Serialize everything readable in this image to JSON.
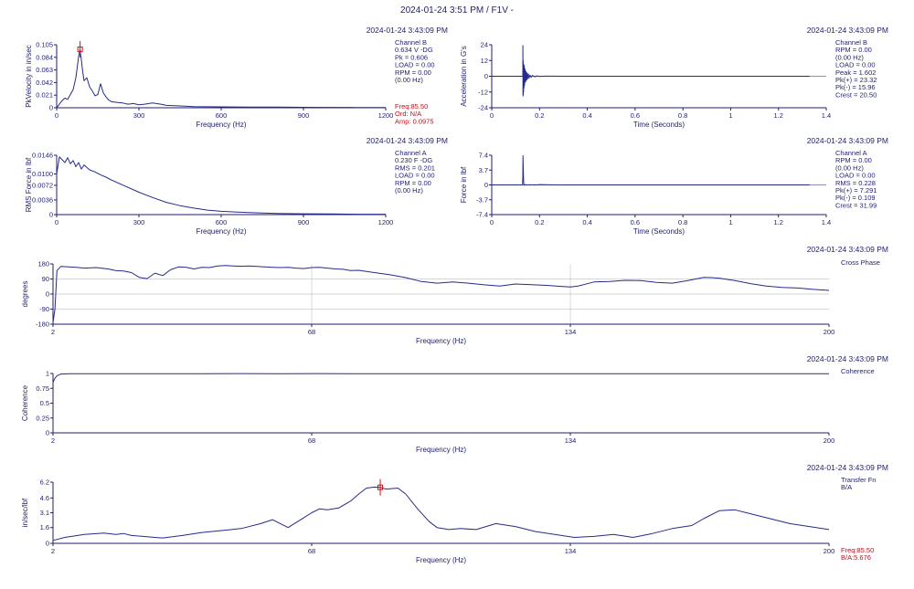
{
  "window": {
    "title": "2024-01-24 3:51 PM / F1V -"
  },
  "colors": {
    "trace": "#252a8c",
    "axis": "#1e1e6e",
    "grid": "#c8c8c8",
    "marker": "#c8141e",
    "annotation": "#b4141e"
  },
  "chart_data": [
    {
      "id": "p1",
      "type": "line",
      "timestamp": "2024-01-24 3:43:09 PM",
      "xlabel": "Frequency (Hz)",
      "ylabel": "PkVelocity in in/sec",
      "xlim": [
        0,
        1200
      ],
      "ylim": [
        0,
        0.105
      ],
      "xticks": [
        0,
        300,
        600,
        900,
        1200
      ],
      "yticks": [
        0,
        0.021,
        0.042,
        0.063,
        0.084,
        0.105
      ],
      "ytick_labels": [
        "0",
        "0.021",
        "0.042",
        "0.063",
        "0.084",
        "0.105"
      ],
      "xtick_labels": [
        "0",
        "300",
        "600",
        "900",
        "1200"
      ],
      "info": [
        "Channel B",
        "0.634 V -DG",
        "Pk = 0.606",
        "LOAD = 0.00",
        "RPM = 0.00",
        "(0.00 Hz)"
      ],
      "info_red": [
        "Freq:85.50",
        "Ord:  N/A",
        "Amp: 0.0975"
      ],
      "cursor": {
        "x": 85.5,
        "y": 0.0975
      },
      "x": [
        0,
        10,
        20,
        30,
        40,
        50,
        60,
        70,
        80,
        85,
        90,
        95,
        100,
        110,
        120,
        130,
        140,
        150,
        160,
        170,
        180,
        190,
        200,
        220,
        240,
        260,
        280,
        300,
        320,
        350,
        380,
        400,
        450,
        500,
        600,
        700,
        800,
        900,
        1000,
        1100,
        1200
      ],
      "values": [
        0,
        0.006,
        0.012,
        0.016,
        0.014,
        0.022,
        0.03,
        0.05,
        0.085,
        0.0975,
        0.08,
        0.06,
        0.045,
        0.05,
        0.035,
        0.028,
        0.02,
        0.022,
        0.04,
        0.025,
        0.018,
        0.013,
        0.01,
        0.009,
        0.008,
        0.006,
        0.007,
        0.005,
        0.006,
        0.008,
        0.006,
        0.004,
        0.003,
        0.002,
        0.0015,
        0.001,
        0.001,
        0.0008,
        0.0006,
        0.0005,
        0.0004
      ]
    },
    {
      "id": "p2",
      "type": "line",
      "timestamp": "2024-01-24 3:43:09 PM",
      "xlabel": "Time (Seconds)",
      "ylabel": "Acceleration in G's",
      "xlim": [
        0,
        1.4
      ],
      "ylim": [
        -24,
        24
      ],
      "xticks": [
        0,
        0.2,
        0.4,
        0.6,
        0.8,
        1,
        1.2,
        1.4
      ],
      "xtick_labels": [
        "0",
        "0.2",
        "0.4",
        "0.6",
        "0.8",
        "1",
        "1.2",
        "1.4"
      ],
      "yticks": [
        -24,
        -12,
        0,
        12,
        24
      ],
      "ytick_labels": [
        "-24",
        "-12",
        "0",
        "12",
        "24"
      ],
      "info": [
        "Channel B",
        "RPM = 0.00",
        "(0.00 Hz)",
        "LOAD = 0.00",
        "Peak = 1.602",
        "Pk(+) = 23.32",
        "Pk(-) = 15.96",
        "Crest = 20.50"
      ],
      "x": [
        0,
        0.128,
        0.13,
        0.1305,
        0.131,
        0.1315,
        0.132,
        0.1325,
        0.133,
        0.134,
        0.135,
        0.136,
        0.137,
        0.138,
        0.139,
        0.14,
        0.142,
        0.144,
        0.146,
        0.148,
        0.15,
        0.153,
        0.156,
        0.16,
        0.165,
        0.17,
        0.18,
        0.19,
        0.2,
        0.22,
        0.25,
        0.3,
        1.33
      ],
      "values": [
        0,
        0,
        0,
        23.3,
        -15,
        12,
        -14,
        10,
        -12,
        9,
        -9,
        8,
        -7,
        6,
        -5,
        5,
        -4,
        3.5,
        -3,
        2.5,
        -2,
        1.8,
        -1.5,
        1,
        -0.8,
        0.6,
        -0.4,
        0.3,
        -0.2,
        0.1,
        0.05,
        0,
        0
      ]
    },
    {
      "id": "p3",
      "type": "line",
      "timestamp": "2024-01-24 3:43:09 PM",
      "xlabel": "Frequency (Hz)",
      "ylabel": "RMS Force in lbf",
      "xlim": [
        0,
        1200
      ],
      "ylim": [
        0,
        0.0146
      ],
      "xticks": [
        0,
        300,
        600,
        900,
        1200
      ],
      "xtick_labels": [
        "0",
        "300",
        "600",
        "900",
        "1200"
      ],
      "yticks": [
        0,
        0.0036,
        0.0072,
        0.01,
        0.0146
      ],
      "ytick_labels": [
        "0",
        "0.0036",
        "0.0072",
        "0.0100",
        "0.0146"
      ],
      "info": [
        "Channel A",
        "0.230 F -DG",
        "RMS = 0.201",
        "LOAD = 0.00",
        "RPM = 0.00",
        "(0.00 Hz)"
      ],
      "x": [
        0,
        10,
        20,
        30,
        40,
        50,
        60,
        70,
        80,
        90,
        100,
        120,
        140,
        160,
        180,
        200,
        250,
        300,
        350,
        400,
        450,
        500,
        550,
        600,
        700,
        800,
        900,
        1000,
        1100,
        1200
      ],
      "values": [
        0.01,
        0.0142,
        0.0135,
        0.0128,
        0.014,
        0.0125,
        0.0133,
        0.0118,
        0.0128,
        0.0112,
        0.0122,
        0.011,
        0.0105,
        0.0098,
        0.0092,
        0.0085,
        0.007,
        0.0055,
        0.0042,
        0.003,
        0.0022,
        0.0016,
        0.0011,
        0.0008,
        0.0005,
        0.0003,
        0.0002,
        0.00015,
        0.0001,
        0.0001
      ]
    },
    {
      "id": "p4",
      "type": "line",
      "timestamp": "2024-01-24 3:43:09 PM",
      "xlabel": "Time (Seconds)",
      "ylabel": "Force in lbf",
      "xlim": [
        0,
        1.4
      ],
      "ylim": [
        -7.4,
        7.4
      ],
      "xticks": [
        0,
        0.2,
        0.4,
        0.6,
        0.8,
        1,
        1.2,
        1.4
      ],
      "xtick_labels": [
        "0",
        "0.2",
        "0.4",
        "0.6",
        "0.8",
        "1",
        "1.2",
        "1.4"
      ],
      "yticks": [
        -7.4,
        -3.7,
        0,
        3.7,
        7.4
      ],
      "ytick_labels": [
        "-7.4",
        "-3.7",
        "0",
        "3.7",
        "7.4"
      ],
      "info": [
        "Channel A",
        "RPM = 0.00",
        "(0.00 Hz)",
        "LOAD = 0.00",
        "RMS = 0.228",
        "Pk(+) = 7.291",
        "Pk(-) = 0.109",
        "Crest = 31.99"
      ],
      "x": [
        0,
        0.128,
        0.129,
        0.13,
        0.131,
        0.132,
        0.133,
        0.134,
        0.136,
        0.14,
        0.15,
        0.16,
        0.17,
        0.18,
        0.19,
        0.2,
        0.25,
        0.3,
        1.33
      ],
      "values": [
        0,
        0,
        0,
        2,
        7.29,
        4,
        1.5,
        0.3,
        -0.1,
        0.1,
        0,
        0.05,
        0,
        0.03,
        0,
        0.1,
        0.02,
        0,
        0
      ]
    },
    {
      "id": "p5",
      "type": "line",
      "timestamp": "2024-01-24 3:43:09 PM",
      "title_right": "Cross Phase",
      "xlabel": "Frequency (Hz)",
      "ylabel": "degrees",
      "xlim": [
        2,
        200
      ],
      "ylim": [
        -180,
        180
      ],
      "xticks": [
        2,
        68,
        134,
        200
      ],
      "xtick_labels": [
        "2",
        "68",
        "134",
        "200"
      ],
      "yticks": [
        -180,
        -90,
        0,
        90,
        180
      ],
      "ytick_labels": [
        "-180",
        "-90",
        "0",
        "90",
        "180"
      ],
      "grid": true,
      "x": [
        2,
        2.5,
        3,
        4,
        6,
        8,
        10,
        13,
        16,
        18,
        20,
        22,
        24,
        26,
        28,
        30,
        32,
        34,
        36,
        38,
        40,
        42,
        44,
        46,
        48,
        50,
        52,
        54,
        56,
        58,
        60,
        62,
        64,
        66,
        68,
        70,
        72,
        74,
        76,
        78,
        80,
        84,
        88,
        92,
        96,
        100,
        104,
        108,
        112,
        116,
        120,
        124,
        128,
        132,
        134,
        136,
        140,
        144,
        148,
        152,
        156,
        160,
        164,
        166,
        168,
        170,
        172,
        176,
        180,
        184,
        188,
        192,
        196,
        200
      ],
      "values": [
        -170,
        -90,
        140,
        165,
        162,
        160,
        155,
        158,
        150,
        140,
        138,
        128,
        100,
        92,
        125,
        110,
        145,
        162,
        160,
        150,
        160,
        158,
        168,
        170,
        168,
        166,
        168,
        165,
        162,
        160,
        158,
        160,
        155,
        152,
        158,
        160,
        155,
        150,
        148,
        140,
        142,
        128,
        115,
        98,
        75,
        65,
        72,
        65,
        55,
        48,
        60,
        56,
        52,
        45,
        42,
        48,
        72,
        75,
        82,
        80,
        70,
        65,
        80,
        90,
        100,
        98,
        95,
        80,
        62,
        48,
        40,
        36,
        28,
        22
      ]
    },
    {
      "id": "p6",
      "type": "line",
      "timestamp": "2024-01-24 3:43:09 PM",
      "title_right": "Coherence",
      "xlabel": "Frequency (Hz)",
      "ylabel": "Coherence",
      "xlim": [
        2,
        200
      ],
      "ylim": [
        0,
        1
      ],
      "xticks": [
        2,
        68,
        134,
        200
      ],
      "xtick_labels": [
        "2",
        "68",
        "134",
        "200"
      ],
      "yticks": [
        0,
        0.25,
        0.5,
        0.75,
        1
      ],
      "ytick_labels": [
        "0",
        "0.25",
        "0.5",
        "0.75",
        "1"
      ],
      "x": [
        2,
        2.5,
        3,
        4,
        6,
        10,
        20,
        30,
        40,
        50,
        60,
        70,
        80,
        90,
        100,
        110,
        120,
        130,
        140,
        150,
        160,
        170,
        180,
        190,
        200
      ],
      "values": [
        0.85,
        0.92,
        0.96,
        0.99,
        0.995,
        0.997,
        0.996,
        0.995,
        0.996,
        0.998,
        0.997,
        0.998,
        0.996,
        0.997,
        0.996,
        0.995,
        0.996,
        0.997,
        0.996,
        0.995,
        0.997,
        0.996,
        0.995,
        0.996,
        0.995
      ]
    },
    {
      "id": "p7",
      "type": "line",
      "timestamp": "2024-01-24 3:43:09 PM",
      "title_right": "Transfer Fn",
      "subtitle_right": "B/A",
      "xlabel": "Frequency (Hz)",
      "ylabel": "in/sec/lbf",
      "xlim": [
        2,
        200
      ],
      "ylim": [
        0,
        6.2
      ],
      "xticks": [
        2,
        68,
        134,
        200
      ],
      "xtick_labels": [
        "2",
        "68",
        "134",
        "200"
      ],
      "yticks": [
        0,
        1.6,
        3.1,
        4.6,
        6.2
      ],
      "ytick_labels": [
        "0",
        "1.6",
        "3.1",
        "4.6",
        "6.2"
      ],
      "info_red": [
        "Freq:85.50",
        "B/A:5.676"
      ],
      "cursor": {
        "x": 85.5,
        "y": 5.676
      },
      "x": [
        2,
        5,
        10,
        15,
        18,
        20,
        22,
        25,
        28,
        30,
        35,
        40,
        45,
        50,
        55,
        58,
        60,
        62,
        64,
        66,
        68,
        70,
        72,
        75,
        78,
        80,
        82,
        84,
        85.5,
        87,
        90,
        92,
        95,
        98,
        100,
        103,
        106,
        110,
        115,
        120,
        125,
        130,
        135,
        140,
        145,
        150,
        155,
        160,
        165,
        168,
        172,
        176,
        180,
        185,
        190,
        195,
        200
      ],
      "values": [
        0.3,
        0.6,
        0.9,
        1.05,
        0.9,
        1.0,
        0.8,
        0.7,
        0.6,
        0.55,
        0.8,
        1.1,
        1.3,
        1.5,
        2.0,
        2.4,
        2.0,
        1.6,
        2.1,
        2.6,
        3.1,
        3.5,
        3.4,
        3.6,
        4.3,
        5.0,
        5.6,
        5.7,
        5.676,
        5.5,
        5.6,
        5.0,
        3.5,
        2.2,
        1.6,
        1.4,
        1.5,
        1.4,
        2.0,
        1.7,
        1.2,
        0.9,
        0.6,
        0.7,
        0.9,
        0.6,
        1.0,
        1.5,
        1.8,
        2.5,
        3.3,
        3.4,
        3.0,
        2.5,
        2.0,
        1.7,
        1.4
      ]
    }
  ]
}
